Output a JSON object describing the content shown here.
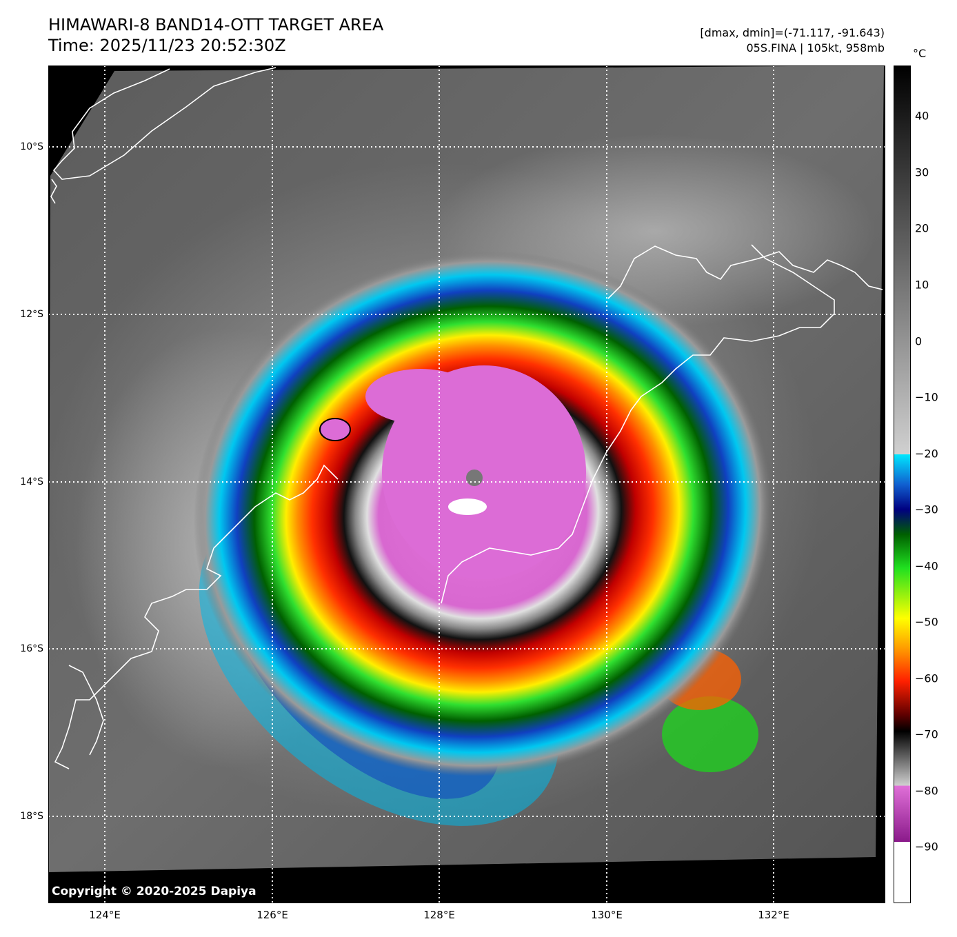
{
  "header": {
    "title_line1": "HIMAWARI-8 BAND14-OTT TARGET AREA",
    "title_line2": "Time: 2025/11/23 20:52:30Z",
    "range_text": "[dmax, dmin]=(-71.117, -91.643)",
    "storm_text": "05S.FINA | 105kt, 958mb"
  },
  "colorbar": {
    "unit": "°C",
    "ticks": [
      "40",
      "30",
      "20",
      "10",
      "0",
      "−10",
      "−20",
      "−30",
      "−40",
      "−50",
      "−60",
      "−70",
      "−80",
      "−90"
    ],
    "min": -100,
    "max": 49,
    "colors": {
      "white": "#ffffff",
      "magenta": "#e070d8",
      "purple": "#8a1a8a",
      "gray_light": "#c8c8c8",
      "black": "#000000",
      "red": "#e00000",
      "orange": "#ff9000",
      "yellow": "#ffff00",
      "green": "#20e020",
      "darkgreen": "#006000",
      "blue": "#1040c0",
      "navy": "#000080",
      "cyan": "#00e8ff"
    }
  },
  "axes": {
    "lat_labels": [
      "10°S",
      "12°S",
      "14°S",
      "16°S",
      "18°S"
    ],
    "lon_labels": [
      "124°E",
      "126°E",
      "128°E",
      "130°E",
      "132°E"
    ]
  },
  "copyright": "Copyright © 2020-2025 Dapiya"
}
